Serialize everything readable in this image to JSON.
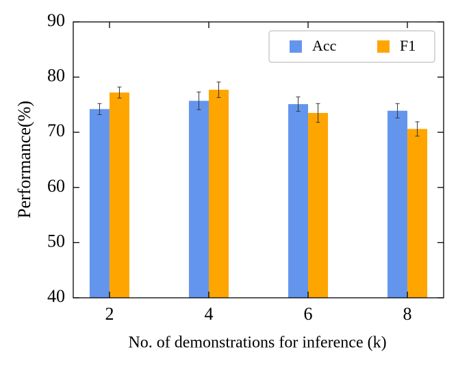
{
  "chart_data": {
    "type": "bar",
    "xlabel": "No. of demonstrations for inference (k)",
    "ylabel": "Performance(%)",
    "x": [
      2,
      4,
      6,
      8
    ],
    "xlim": [
      1.27,
      8.73
    ],
    "xticks": [
      2,
      4,
      6,
      8
    ],
    "ylim": [
      40,
      90
    ],
    "yticks": [
      40,
      50,
      60,
      70,
      80,
      90
    ],
    "legend": "upper right",
    "series": [
      {
        "name": "Acc",
        "color": "#6495ed",
        "values": [
          74.2,
          75.7,
          75.1,
          73.9
        ],
        "errors": [
          1.0,
          1.6,
          1.3,
          1.3
        ]
      },
      {
        "name": "F1",
        "color": "#ffa500",
        "values": [
          77.2,
          77.7,
          73.5,
          70.6
        ],
        "errors": [
          1.0,
          1.4,
          1.7,
          1.3
        ]
      }
    ]
  }
}
